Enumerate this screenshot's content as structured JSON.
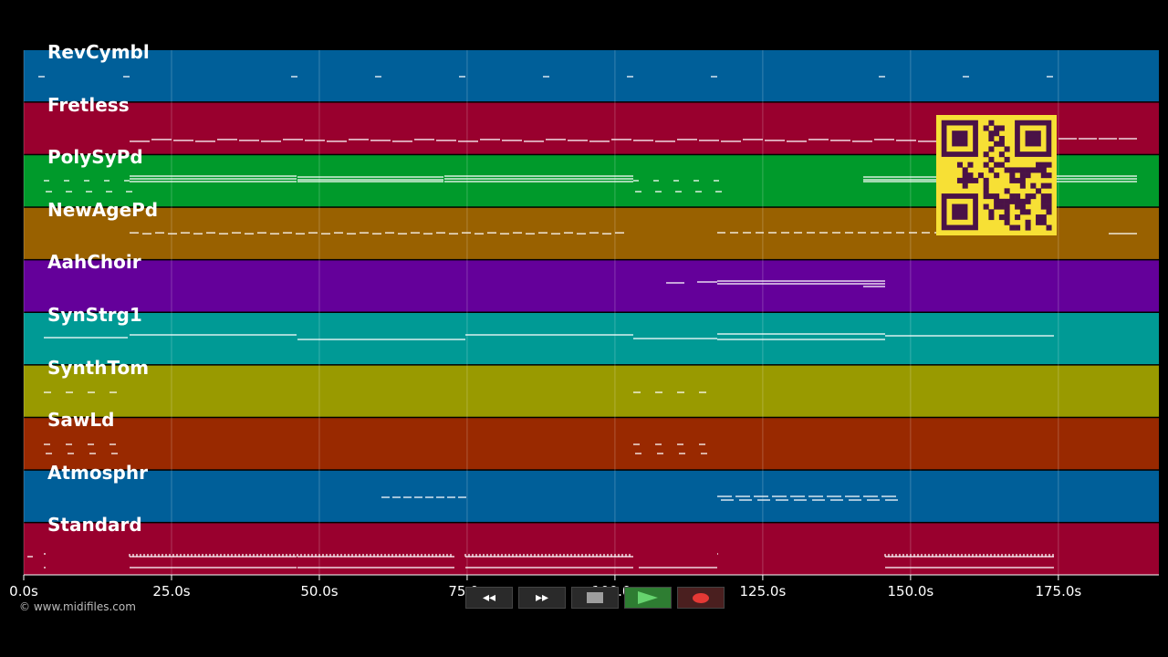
{
  "tracks": [
    {
      "name": "RevCymbl",
      "color": "#005f99"
    },
    {
      "name": "Fretless",
      "color": "#99002e"
    },
    {
      "name": "PolySyPd",
      "color": "#009a2b"
    },
    {
      "name": "NewAgePd",
      "color": "#996100"
    },
    {
      "name": "AahChoir",
      "color": "#64009a"
    },
    {
      "name": "SynStrg1",
      "color": "#009a95"
    },
    {
      "name": "SynthTom",
      "color": "#999a00"
    },
    {
      "name": "SawLd",
      "color": "#992900"
    },
    {
      "name": "Atmosphr",
      "color": "#005f99"
    },
    {
      "name": "Standard",
      "color": "#99002e"
    }
  ],
  "time_axis": {
    "ticks": [
      "0.0s",
      "25.0s",
      "50.0s",
      "75.0s",
      "100.0s",
      "125.0s",
      "150.0s",
      "175.0s"
    ],
    "tick_values": [
      0,
      25,
      50,
      75,
      100,
      125,
      150,
      175
    ],
    "max_seconds": 192
  },
  "copyright": "© www.midifiles.com",
  "transport": {
    "rewind": "◂◂",
    "fast_forward": "▸▸"
  },
  "icons": {
    "rewind": "rewind-icon",
    "fast_forward": "fast-forward-icon",
    "stop": "stop-icon",
    "play": "play-icon",
    "record": "record-icon",
    "qr": "qr-code-icon"
  }
}
